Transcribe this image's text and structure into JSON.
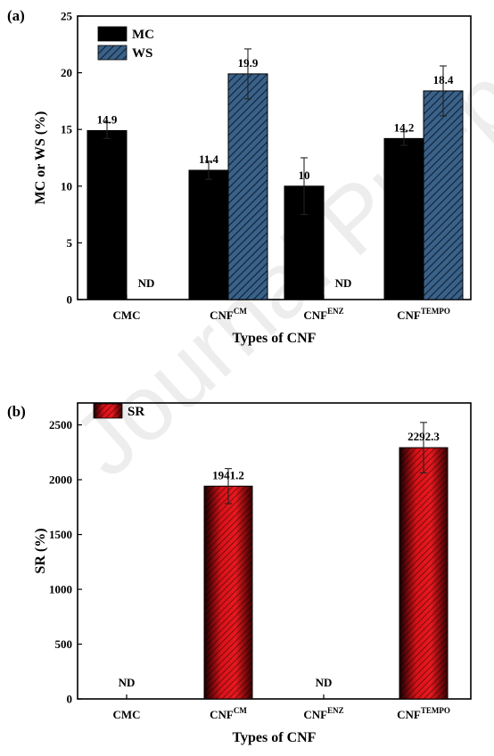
{
  "watermark": "Journal Pre-proof",
  "chart_data": [
    {
      "panel": "(a)",
      "type": "bar",
      "categories": [
        {
          "main": "CMC",
          "sup": ""
        },
        {
          "main": "CNF",
          "sup": "CM"
        },
        {
          "main": "CNF",
          "sup": "ENZ"
        },
        {
          "main": "CNF",
          "sup": "TEMPO"
        }
      ],
      "series": [
        {
          "name": "MC",
          "values": [
            14.9,
            11.4,
            10,
            14.2
          ],
          "errors": [
            0.7,
            0.8,
            2.5,
            0.6
          ],
          "labels": [
            "14.9",
            "11.4",
            "10",
            "14.2"
          ],
          "color": "#000000",
          "pattern": "solid"
        },
        {
          "name": "WS",
          "values": [
            null,
            19.9,
            null,
            18.4
          ],
          "errors": [
            null,
            2.2,
            null,
            2.2
          ],
          "labels": [
            "ND",
            "19.9",
            "ND",
            "18.4"
          ],
          "color": "#2d4f74",
          "pattern": "hatch"
        }
      ],
      "xlabel": "Types of CNF",
      "ylabel": "MC or WS (%)",
      "ylim": [
        0,
        25
      ],
      "yticks": [
        0,
        5,
        10,
        15,
        20,
        25
      ],
      "legend": "top-left",
      "grid": false
    },
    {
      "panel": "(b)",
      "type": "bar",
      "categories": [
        {
          "main": "CMC",
          "sup": ""
        },
        {
          "main": "CNF",
          "sup": "CM"
        },
        {
          "main": "CNF",
          "sup": "ENZ"
        },
        {
          "main": "CNF",
          "sup": "TEMPO"
        }
      ],
      "series": [
        {
          "name": "SR",
          "values": [
            null,
            1941.2,
            null,
            2292.3
          ],
          "errors": [
            null,
            160,
            null,
            230
          ],
          "labels": [
            "ND",
            "1941.2",
            "ND",
            "2292.3"
          ],
          "color": "#e0141a",
          "pattern": "hatch"
        }
      ],
      "xlabel": "Types of CNF",
      "ylabel": "SR (%)",
      "ylim": [
        0,
        2700
      ],
      "yticks": [
        0,
        500,
        1000,
        1500,
        2000,
        2500
      ],
      "legend": "top-left",
      "grid": false
    }
  ]
}
